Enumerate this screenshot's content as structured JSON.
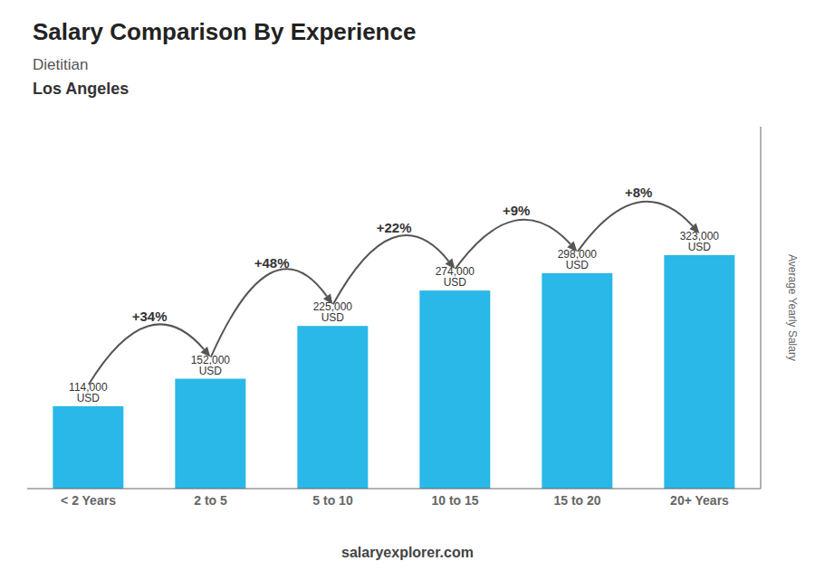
{
  "chart_data": {
    "type": "bar",
    "title": "Salary Comparison By Experience",
    "subtitle": "Dietitian",
    "subtitle2": "Los Angeles",
    "y_label": "Average Yearly Salary",
    "footer": "salaryexplorer.com",
    "categories": [
      "< 2 Years",
      "2 to 5",
      "5 to 10",
      "10 to 15",
      "15 to 20",
      "20+ Years"
    ],
    "values": [
      114000,
      152000,
      225000,
      274000,
      298000,
      323000
    ],
    "value_labels": [
      "114,000 USD",
      "152,000 USD",
      "225,000 USD",
      "274,000 USD",
      "298,000 USD",
      "323,000 USD"
    ],
    "data_labels": true,
    "annotations": [
      "+34%",
      "+48%",
      "+22%",
      "+9%",
      "+8%"
    ],
    "color": "#29b8e8",
    "ylim": [
      0,
      500650
    ],
    "tick_labels": "x",
    "grid": false
  }
}
